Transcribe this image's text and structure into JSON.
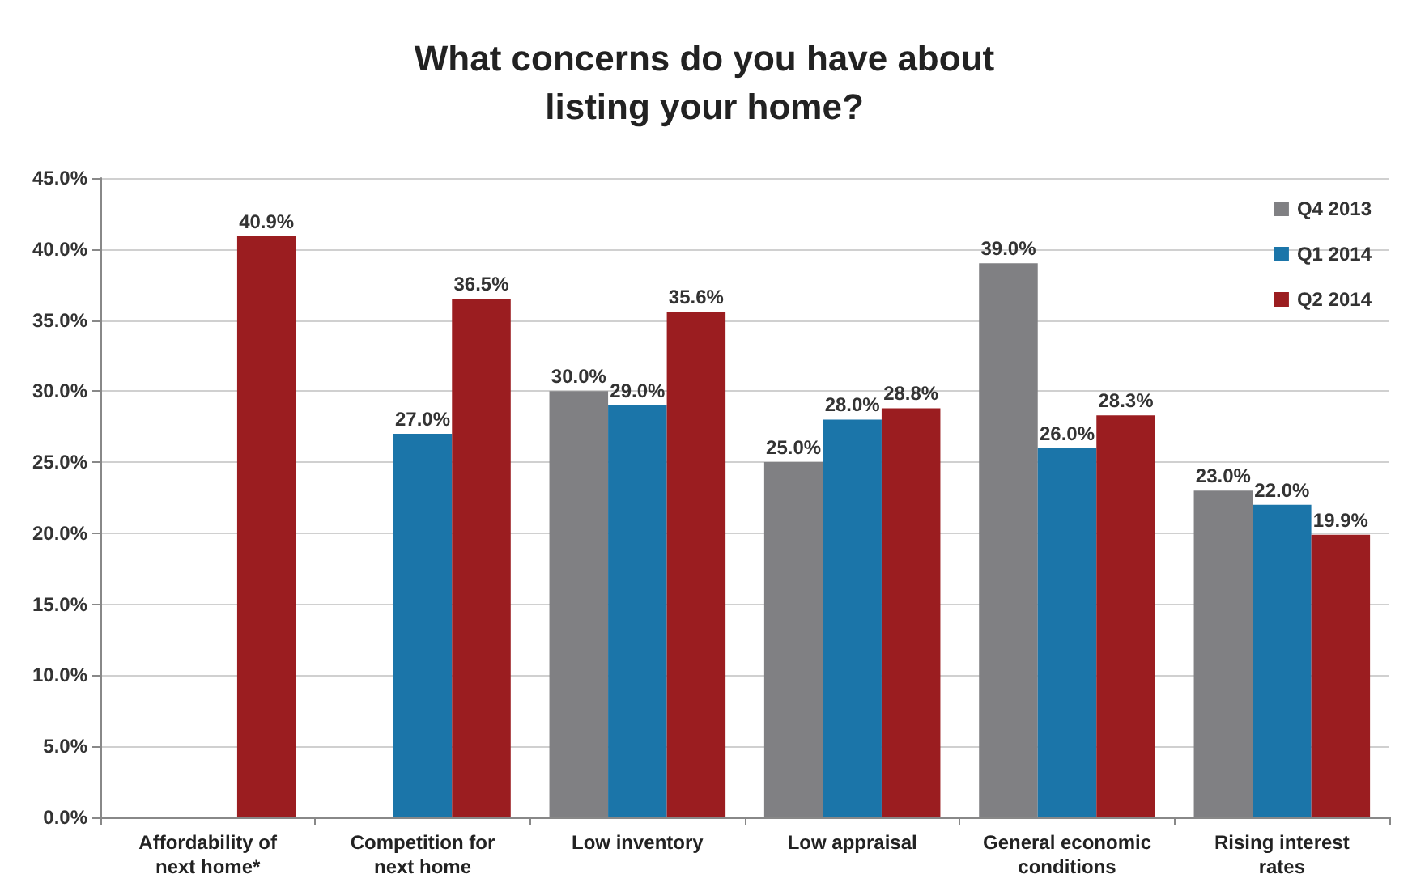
{
  "chart_data": {
    "type": "bar",
    "title": "What concerns do you have about\nlisting your home?",
    "categories": [
      "Affordability of\nnext home*",
      "Competition for\nnext home",
      "Low inventory",
      "Low appraisal",
      "General economic\nconditions",
      "Rising interest\nrates"
    ],
    "series": [
      {
        "name": "Q4 2013",
        "color": "#808083",
        "values": [
          null,
          null,
          30.0,
          25.0,
          39.0,
          23.0
        ],
        "value_labels": [
          null,
          null,
          "30.0%",
          "25.0%",
          "39.0%",
          "23.0%"
        ]
      },
      {
        "name": "Q1 2014",
        "color": "#1b75a9",
        "values": [
          null,
          27.0,
          29.0,
          28.0,
          26.0,
          22.0
        ],
        "value_labels": [
          null,
          "27.0%",
          "29.0%",
          "28.0%",
          "26.0%",
          "22.0%"
        ]
      },
      {
        "name": "Q2 2014",
        "color": "#9b1d20",
        "values": [
          40.9,
          36.5,
          35.6,
          28.8,
          28.3,
          19.9
        ],
        "value_labels": [
          "40.9%",
          "36.5%",
          "35.6%",
          "28.8%",
          "28.3%",
          "19.9%"
        ]
      }
    ],
    "ylim": [
      0,
      45
    ],
    "yticks": [
      {
        "value": 0,
        "label": "0.0%"
      },
      {
        "value": 5,
        "label": "5.0%"
      },
      {
        "value": 10,
        "label": "10.0%"
      },
      {
        "value": 15,
        "label": "15.0%"
      },
      {
        "value": 20,
        "label": "20.0%"
      },
      {
        "value": 25,
        "label": "25.0%"
      },
      {
        "value": 30,
        "label": "30.0%"
      },
      {
        "value": 35,
        "label": "35.0%"
      },
      {
        "value": 40,
        "label": "40.0%"
      },
      {
        "value": 45,
        "label": "45.0%"
      }
    ],
    "grid": "y",
    "legend": "top right"
  }
}
